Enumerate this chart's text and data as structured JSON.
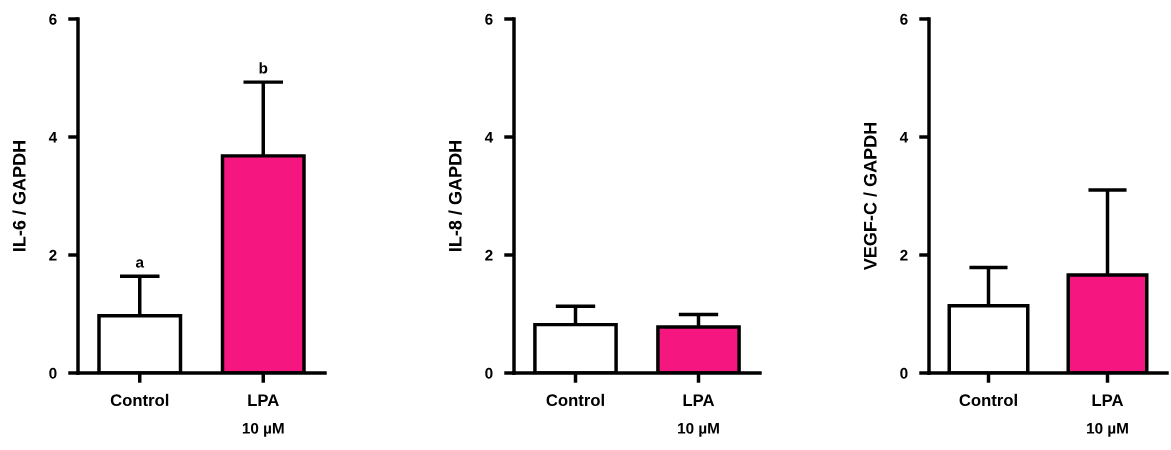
{
  "chart_data": [
    {
      "type": "bar",
      "categories": [
        "Control",
        "LPA"
      ],
      "values": [
        0.97,
        3.68
      ],
      "colors": [
        "#ffffff",
        "#f5177f"
      ],
      "errors": [
        [
          0.97,
          1.64
        ],
        [
          3.68,
          4.93
        ]
      ],
      "ylabel": "IL-6 / GAPDH",
      "xlabel": "10 µM",
      "ylim": [
        0,
        6
      ],
      "yticks": [
        0,
        2,
        4,
        6
      ],
      "grid": false,
      "legend": false,
      "annotations": [
        {
          "text": "a",
          "x": "Control",
          "y": 1.64
        },
        {
          "text": "b",
          "x": "LPA",
          "y": 4.93
        }
      ]
    },
    {
      "type": "bar",
      "categories": [
        "Control",
        "LPA"
      ],
      "values": [
        0.82,
        0.78
      ],
      "colors": [
        "#ffffff",
        "#f5177f"
      ],
      "errors": [
        [
          0.82,
          1.13
        ],
        [
          0.78,
          0.99
        ]
      ],
      "ylabel": "IL-8 / GAPDH",
      "xlabel": "10 µM",
      "ylim": [
        0,
        6
      ],
      "yticks": [
        0,
        2,
        4,
        6
      ],
      "grid": false,
      "legend": false
    },
    {
      "type": "bar",
      "categories": [
        "Control",
        "LPA"
      ],
      "values": [
        1.14,
        1.66
      ],
      "colors": [
        "#ffffff",
        "#f5177f"
      ],
      "errors": [
        [
          1.14,
          1.79
        ],
        [
          1.66,
          3.1
        ]
      ],
      "ylabel": "VEGF-C / GAPDH",
      "xlabel": "10 µM",
      "ylim": [
        0,
        6
      ],
      "yticks": [
        0,
        2,
        4,
        6
      ],
      "grid": false,
      "legend": false
    }
  ]
}
